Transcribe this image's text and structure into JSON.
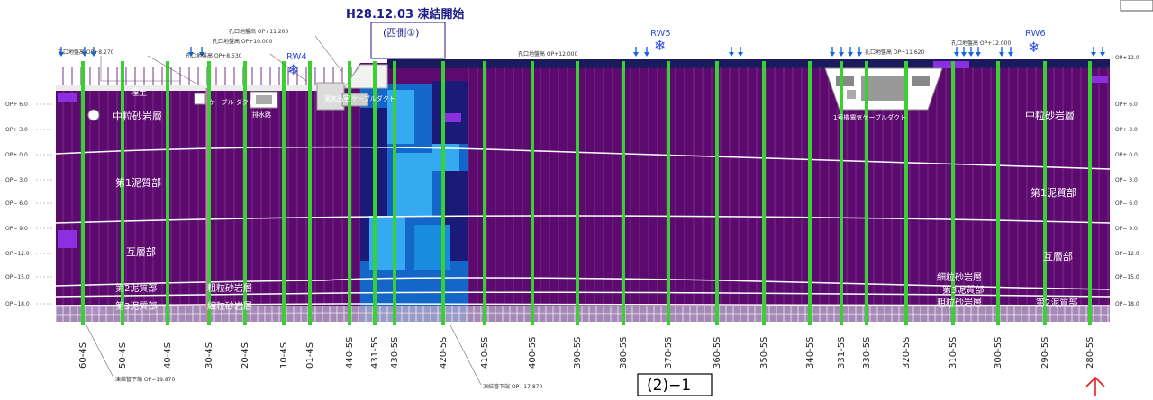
{
  "header": {
    "title": "H28.12.03 凍結開始",
    "subtitle": "(西側①)",
    "section_label": "(2)−1"
  },
  "elevation_labels": [
    "OP+ 6.0",
    "OP+ 3.0",
    "OP± 0.0",
    "OP− 3.0",
    "OP− 6.0",
    "OP− 9.0",
    "OP−12.0",
    "OP−15.0",
    "OP−18.0"
  ],
  "elevation_labels_right": [
    "OP+12.0",
    "OP+ 6.0",
    "OP+ 3.0",
    "OP± 0.0",
    "OP− 3.0",
    "OP− 6.0",
    "OP− 9.0",
    "OP−12.0",
    "OP−15.0",
    "OP−18.0"
  ],
  "pipe_labels": [
    "60-4S",
    "50-4S",
    "40-4S",
    "30-4S",
    "20-4S",
    "10-4S",
    "01-4S",
    "440-5S",
    "431-5S",
    "430-5S",
    "420-5S",
    "410-5S",
    "400-5S",
    "390-5S",
    "380-5S",
    "370-5S",
    "360-5S",
    "350-5S",
    "340-5S",
    "331-5S",
    "330-5S",
    "320-5S",
    "310-5S",
    "300-5S",
    "290-5S",
    "280-5S"
  ],
  "layers": {
    "mid_sand_left": "中粒砂岩層",
    "mid_sand_right": "中粒砂岩層",
    "mud1_left": "第1泥質部",
    "mud1_right": "第1泥質部",
    "alt_left": "互層部",
    "alt_right": "互層部",
    "mud2_left": "第2泥質部",
    "coarse_left": "粗粒砂岩層",
    "mud3_left": "第3泥質部",
    "coarse_left2": "細粒砂岩層",
    "fine_right": "細粒砂岩層",
    "mud3_right": "第3泥質部",
    "coarse_right": "粗粒砂岩層",
    "mud2_right": "第2泥質部"
  },
  "annotations": {
    "rw4": "RW4",
    "rw5": "RW5",
    "rw6": "RW6",
    "hole_left": "孔口地盤高 OP+8.270",
    "hole_2": "孔口地盤高 OP+8.530",
    "hole_3": "孔口地盤高 OP+10.000",
    "hole_4": "孔口地盤高 OP+11.200",
    "hole_mid": "孔口地盤高 OP+12.000",
    "hole_r1": "孔口地盤高 OP+11.620",
    "hole_r2": "孔口地盤高 OP+12.000",
    "cable_left": "ケーブル ダクト",
    "cable_mid": "電気品室 ケーブルダクト",
    "cable_right": "1号機電気ケーブルダクト",
    "drain": "排水路",
    "bottom_left": "凍結管下端 OP−19.870",
    "bottom_mid": "凍結管下端 OP−17.870",
    "top_left_label": "埋土"
  },
  "colors": {
    "frozen_ground": "#5c0a6e",
    "cold_dark": "#1c1a78",
    "cold_mid": "#1466c8",
    "cold_light": "#35aaf0",
    "freeze_pipe": "#39d131",
    "pink_pipe": "#f06ad0",
    "arrow": "#1565e0"
  }
}
